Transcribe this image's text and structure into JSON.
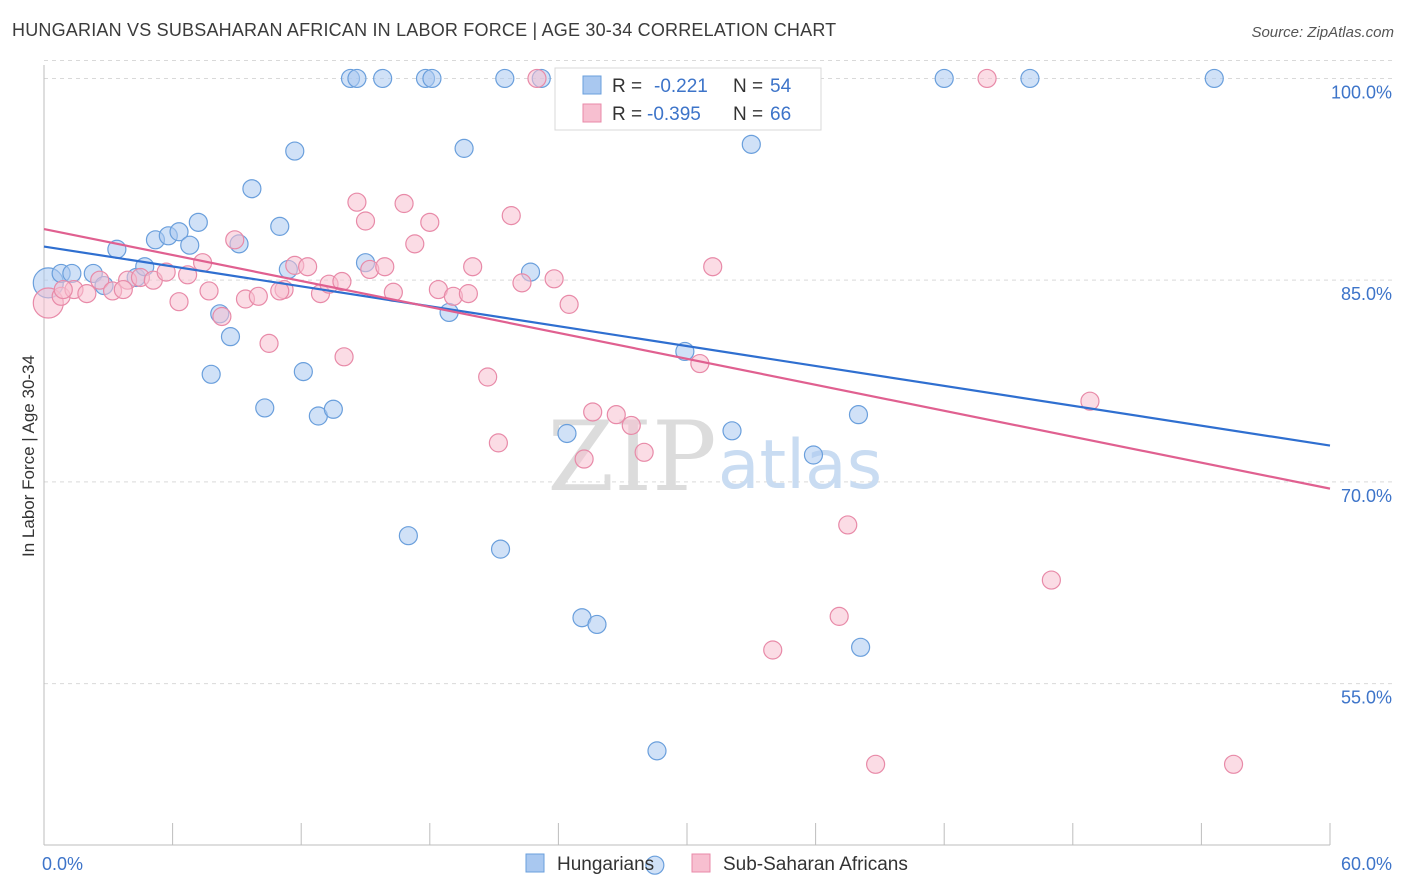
{
  "header": {
    "title": "HUNGARIAN VS SUBSAHARAN AFRICAN IN LABOR FORCE | AGE 30-34 CORRELATION CHART",
    "source": "Source: ZipAtlas.com"
  },
  "watermark": {
    "zip": "ZIP",
    "atlas": "atlas"
  },
  "colors": {
    "hungarians_fill": "#a9c8f0",
    "hungarians_stroke": "#6a9fdc",
    "hungarians_line": "#2f6fd0",
    "africans_fill": "#f7bfd0",
    "africans_stroke": "#e88aa8",
    "africans_line": "#e06090",
    "axis_label": "#3d74c9",
    "grid": "#d9d9d9"
  },
  "legend": {
    "rows": [
      {
        "r_label": "R =",
        "r_value": "-0.221",
        "n_label": "N =",
        "n_value": "54"
      },
      {
        "r_label": "R =",
        "r_value": "-0.395",
        "n_label": "N =",
        "n_value": "66"
      }
    ]
  },
  "chart_data": {
    "type": "scatter",
    "title": "HUNGARIAN VS SUBSAHARAN AFRICAN IN LABOR FORCE | AGE 30-34 CORRELATION CHART",
    "xlabel": "",
    "ylabel": "In Labor Force | Age 30-34",
    "xlim": [
      0,
      60
    ],
    "ylim": [
      43,
      101
    ],
    "x_tick_labels": [
      "0.0%",
      "60.0%"
    ],
    "y_ticks": [
      55,
      70,
      85,
      100
    ],
    "y_tick_labels": [
      "55.0%",
      "70.0%",
      "85.0%",
      "100.0%"
    ],
    "grid": true,
    "legend_position": "bottom",
    "series": [
      {
        "name": "Hungarians",
        "r": -0.221,
        "n": 54,
        "trend": {
          "x": [
            0,
            60
          ],
          "y": [
            87.5,
            72.7
          ]
        },
        "points": [
          [
            0.2,
            84.8
          ],
          [
            0.8,
            85.5
          ],
          [
            1.3,
            85.5
          ],
          [
            2.3,
            85.5
          ],
          [
            2.8,
            84.6
          ],
          [
            3.4,
            87.3
          ],
          [
            4.3,
            85.2
          ],
          [
            4.7,
            86.0
          ],
          [
            5.2,
            88.0
          ],
          [
            5.8,
            88.3
          ],
          [
            6.3,
            88.6
          ],
          [
            6.8,
            87.6
          ],
          [
            7.2,
            89.3
          ],
          [
            7.8,
            78.0
          ],
          [
            8.2,
            82.5
          ],
          [
            8.7,
            80.8
          ],
          [
            9.1,
            87.7
          ],
          [
            9.7,
            91.8
          ],
          [
            10.3,
            75.5
          ],
          [
            11.0,
            89.0
          ],
          [
            11.4,
            85.8
          ],
          [
            11.7,
            94.6
          ],
          [
            12.1,
            78.2
          ],
          [
            12.8,
            74.9
          ],
          [
            13.5,
            75.4
          ],
          [
            14.3,
            100.0
          ],
          [
            14.6,
            100.0
          ],
          [
            15.0,
            86.3
          ],
          [
            15.8,
            100.0
          ],
          [
            17.0,
            66.0
          ],
          [
            17.8,
            100.0
          ],
          [
            18.1,
            100.0
          ],
          [
            18.9,
            82.6
          ],
          [
            19.6,
            94.8
          ],
          [
            21.3,
            65.0
          ],
          [
            21.5,
            100.0
          ],
          [
            22.7,
            85.6
          ],
          [
            23.2,
            100.0
          ],
          [
            24.4,
            73.6
          ],
          [
            25.1,
            59.9
          ],
          [
            25.8,
            59.4
          ],
          [
            28.5,
            100.0
          ],
          [
            28.6,
            50.0
          ],
          [
            29.9,
            79.7
          ],
          [
            31.5,
            100.0
          ],
          [
            32.1,
            73.8
          ],
          [
            33.0,
            95.1
          ],
          [
            35.9,
            72.0
          ],
          [
            38.0,
            75.0
          ],
          [
            38.1,
            57.7
          ],
          [
            42.0,
            100.0
          ],
          [
            46.0,
            100.0
          ],
          [
            54.6,
            100.0
          ],
          [
            28.5,
            41.5
          ]
        ]
      },
      {
        "name": "Sub-Saharan Africans",
        "r": -0.395,
        "n": 66,
        "trend": {
          "x": [
            0,
            60
          ],
          "y": [
            88.8,
            69.5
          ]
        },
        "points": [
          [
            0.2,
            83.3
          ],
          [
            0.8,
            83.8
          ],
          [
            1.4,
            84.3
          ],
          [
            2.0,
            84.0
          ],
          [
            2.6,
            85.0
          ],
          [
            3.2,
            84.2
          ],
          [
            3.9,
            85.0
          ],
          [
            4.5,
            85.2
          ],
          [
            5.1,
            85.0
          ],
          [
            5.7,
            85.6
          ],
          [
            6.3,
            83.4
          ],
          [
            6.7,
            85.4
          ],
          [
            7.4,
            86.3
          ],
          [
            7.7,
            84.2
          ],
          [
            8.3,
            82.3
          ],
          [
            8.9,
            88.0
          ],
          [
            9.4,
            83.6
          ],
          [
            10.0,
            83.8
          ],
          [
            10.5,
            80.3
          ],
          [
            11.2,
            84.3
          ],
          [
            11.7,
            86.1
          ],
          [
            12.3,
            86.0
          ],
          [
            12.9,
            84.0
          ],
          [
            13.3,
            84.7
          ],
          [
            14.0,
            79.3
          ],
          [
            14.6,
            90.8
          ],
          [
            15.0,
            89.4
          ],
          [
            15.2,
            85.8
          ],
          [
            15.9,
            86.0
          ],
          [
            16.3,
            84.1
          ],
          [
            16.8,
            90.7
          ],
          [
            17.3,
            87.7
          ],
          [
            18.0,
            89.3
          ],
          [
            18.4,
            84.3
          ],
          [
            19.1,
            83.8
          ],
          [
            19.8,
            84.0
          ],
          [
            20.0,
            86.0
          ],
          [
            20.7,
            77.8
          ],
          [
            21.2,
            72.9
          ],
          [
            21.8,
            89.8
          ],
          [
            22.3,
            84.8
          ],
          [
            23.0,
            100.0
          ],
          [
            23.8,
            85.1
          ],
          [
            24.5,
            83.2
          ],
          [
            25.2,
            71.7
          ],
          [
            25.6,
            75.2
          ],
          [
            26.7,
            75.0
          ],
          [
            27.4,
            74.2
          ],
          [
            28.0,
            72.2
          ],
          [
            28.6,
            100.0
          ],
          [
            29.9,
            100.0
          ],
          [
            30.6,
            78.8
          ],
          [
            31.2,
            86.0
          ],
          [
            34.0,
            57.5
          ],
          [
            35.5,
            100.0
          ],
          [
            37.1,
            60.0
          ],
          [
            37.5,
            66.8
          ],
          [
            38.8,
            49.0
          ],
          [
            44.0,
            100.0
          ],
          [
            47.0,
            62.7
          ],
          [
            48.8,
            76.0
          ],
          [
            55.5,
            49.0
          ],
          [
            0.9,
            84.3
          ],
          [
            3.7,
            84.3
          ],
          [
            11.0,
            84.2
          ],
          [
            13.9,
            84.9
          ]
        ]
      }
    ]
  }
}
